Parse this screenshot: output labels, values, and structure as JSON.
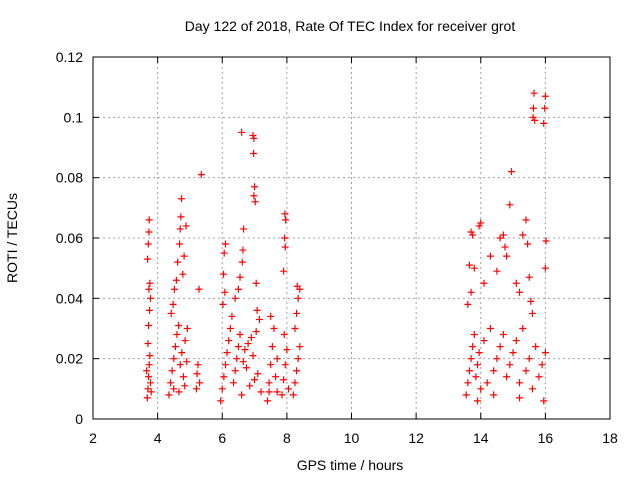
{
  "chart_data": {
    "type": "scatter",
    "title": "Day 122 of 2018, Rate Of TEC Index for receiver grot",
    "xlabel": "GPS time / hours",
    "ylabel": "ROTI / TECUs",
    "xlim": [
      2,
      18
    ],
    "ylim": [
      0,
      0.12
    ],
    "x_ticks": [
      2,
      4,
      6,
      8,
      10,
      12,
      14,
      16,
      18
    ],
    "x_tick_labels": [
      "2",
      "4",
      "6",
      "8",
      "10",
      "12",
      "14",
      "16",
      "18"
    ],
    "y_ticks": [
      0,
      0.02,
      0.04,
      0.06,
      0.08,
      0.1,
      0.12
    ],
    "y_tick_labels": [
      "0",
      "0.02",
      "0.04",
      "0.06",
      "0.08",
      "0.1",
      "0.12"
    ],
    "grid": true,
    "marker": "+",
    "marker_color": "#ff0000",
    "series": [
      {
        "name": "ROTI",
        "points": [
          [
            3.68,
            0.007
          ],
          [
            3.7,
            0.01
          ],
          [
            3.72,
            0.014
          ],
          [
            3.74,
            0.018
          ],
          [
            3.76,
            0.021
          ],
          [
            3.78,
            0.012
          ],
          [
            3.7,
            0.025
          ],
          [
            3.72,
            0.031
          ],
          [
            3.75,
            0.036
          ],
          [
            3.73,
            0.043
          ],
          [
            3.76,
            0.045
          ],
          [
            3.69,
            0.053
          ],
          [
            3.71,
            0.058
          ],
          [
            3.73,
            0.062
          ],
          [
            3.74,
            0.066
          ],
          [
            3.78,
            0.04
          ],
          [
            3.66,
            0.016
          ],
          [
            3.8,
            0.009
          ],
          [
            4.35,
            0.008
          ],
          [
            4.4,
            0.012
          ],
          [
            4.45,
            0.016
          ],
          [
            4.5,
            0.02
          ],
          [
            4.55,
            0.024
          ],
          [
            4.6,
            0.028
          ],
          [
            4.65,
            0.031
          ],
          [
            4.7,
            0.018
          ],
          [
            4.75,
            0.022
          ],
          [
            4.8,
            0.014
          ],
          [
            4.85,
            0.026
          ],
          [
            4.9,
            0.019
          ],
          [
            4.42,
            0.035
          ],
          [
            4.48,
            0.038
          ],
          [
            4.52,
            0.043
          ],
          [
            4.58,
            0.046
          ],
          [
            4.62,
            0.052
          ],
          [
            4.68,
            0.058
          ],
          [
            4.7,
            0.063
          ],
          [
            4.72,
            0.067
          ],
          [
            4.74,
            0.073
          ],
          [
            4.78,
            0.048
          ],
          [
            4.82,
            0.054
          ],
          [
            4.88,
            0.064
          ],
          [
            4.5,
            0.01
          ],
          [
            4.66,
            0.009
          ],
          [
            4.84,
            0.011
          ],
          [
            4.92,
            0.03
          ],
          [
            5.2,
            0.01
          ],
          [
            5.22,
            0.015
          ],
          [
            5.25,
            0.018
          ],
          [
            5.3,
            0.012
          ],
          [
            5.28,
            0.043
          ],
          [
            5.35,
            0.081
          ],
          [
            5.95,
            0.006
          ],
          [
            6.0,
            0.01
          ],
          [
            6.05,
            0.014
          ],
          [
            6.1,
            0.018
          ],
          [
            6.15,
            0.022
          ],
          [
            6.2,
            0.026
          ],
          [
            6.25,
            0.03
          ],
          [
            6.3,
            0.034
          ],
          [
            6.35,
            0.012
          ],
          [
            6.4,
            0.016
          ],
          [
            6.45,
            0.02
          ],
          [
            6.5,
            0.024
          ],
          [
            6.55,
            0.028
          ],
          [
            6.6,
            0.008
          ],
          [
            6.65,
            0.019
          ],
          [
            6.7,
            0.023
          ],
          [
            6.75,
            0.017
          ],
          [
            6.8,
            0.025
          ],
          [
            6.85,
            0.011
          ],
          [
            6.9,
            0.027
          ],
          [
            6.95,
            0.021
          ],
          [
            7.0,
            0.013
          ],
          [
            7.05,
            0.029
          ],
          [
            7.1,
            0.015
          ],
          [
            7.15,
            0.033
          ],
          [
            7.2,
            0.009
          ],
          [
            6.02,
            0.038
          ],
          [
            6.08,
            0.042
          ],
          [
            6.04,
            0.048
          ],
          [
            6.06,
            0.055
          ],
          [
            6.1,
            0.058
          ],
          [
            6.4,
            0.04
          ],
          [
            6.5,
            0.043
          ],
          [
            6.55,
            0.047
          ],
          [
            6.62,
            0.052
          ],
          [
            6.64,
            0.056
          ],
          [
            6.66,
            0.063
          ],
          [
            6.6,
            0.095
          ],
          [
            6.95,
            0.094
          ],
          [
            6.98,
            0.093
          ],
          [
            6.97,
            0.088
          ],
          [
            7.0,
            0.077
          ],
          [
            6.98,
            0.074
          ],
          [
            7.02,
            0.072
          ],
          [
            7.05,
            0.045
          ],
          [
            7.08,
            0.036
          ],
          [
            7.4,
            0.006
          ],
          [
            7.45,
            0.012
          ],
          [
            7.5,
            0.018
          ],
          [
            7.55,
            0.024
          ],
          [
            7.6,
            0.03
          ],
          [
            7.65,
            0.014
          ],
          [
            7.7,
            0.02
          ],
          [
            7.5,
            0.034
          ],
          [
            7.45,
            0.009
          ],
          [
            7.7,
            0.009
          ],
          [
            7.85,
            0.008
          ],
          [
            7.9,
            0.013
          ],
          [
            7.95,
            0.018
          ],
          [
            8.0,
            0.023
          ],
          [
            8.05,
            0.01
          ],
          [
            7.92,
            0.028
          ],
          [
            7.9,
            0.049
          ],
          [
            7.95,
            0.057
          ],
          [
            7.93,
            0.06
          ],
          [
            7.96,
            0.066
          ],
          [
            7.94,
            0.068
          ],
          [
            8.2,
            0.008
          ],
          [
            8.25,
            0.012
          ],
          [
            8.3,
            0.016
          ],
          [
            8.35,
            0.02
          ],
          [
            8.4,
            0.024
          ],
          [
            8.25,
            0.03
          ],
          [
            8.3,
            0.035
          ],
          [
            8.35,
            0.04
          ],
          [
            8.4,
            0.043
          ],
          [
            8.32,
            0.044
          ],
          [
            13.55,
            0.008
          ],
          [
            13.6,
            0.012
          ],
          [
            13.65,
            0.016
          ],
          [
            13.7,
            0.02
          ],
          [
            13.75,
            0.024
          ],
          [
            13.8,
            0.028
          ],
          [
            13.85,
            0.014
          ],
          [
            13.9,
            0.018
          ],
          [
            13.95,
            0.022
          ],
          [
            14.0,
            0.01
          ],
          [
            14.1,
            0.026
          ],
          [
            14.2,
            0.012
          ],
          [
            14.3,
            0.03
          ],
          [
            14.4,
            0.016
          ],
          [
            14.5,
            0.02
          ],
          [
            14.6,
            0.024
          ],
          [
            14.7,
            0.028
          ],
          [
            14.8,
            0.014
          ],
          [
            14.9,
            0.018
          ],
          [
            15.0,
            0.022
          ],
          [
            15.1,
            0.026
          ],
          [
            15.2,
            0.012
          ],
          [
            15.3,
            0.03
          ],
          [
            15.4,
            0.016
          ],
          [
            15.5,
            0.02
          ],
          [
            15.6,
            0.01
          ],
          [
            15.7,
            0.024
          ],
          [
            15.8,
            0.014
          ],
          [
            15.9,
            0.018
          ],
          [
            16.0,
            0.022
          ],
          [
            13.6,
            0.038
          ],
          [
            13.7,
            0.042
          ],
          [
            13.65,
            0.051
          ],
          [
            13.7,
            0.062
          ],
          [
            13.75,
            0.061
          ],
          [
            13.8,
            0.05
          ],
          [
            13.95,
            0.064
          ],
          [
            14.0,
            0.065
          ],
          [
            14.1,
            0.045
          ],
          [
            14.3,
            0.054
          ],
          [
            14.5,
            0.049
          ],
          [
            14.6,
            0.06
          ],
          [
            14.7,
            0.061
          ],
          [
            14.75,
            0.057
          ],
          [
            14.8,
            0.054
          ],
          [
            14.9,
            0.071
          ],
          [
            14.95,
            0.082
          ],
          [
            15.1,
            0.045
          ],
          [
            15.2,
            0.042
          ],
          [
            15.3,
            0.061
          ],
          [
            15.4,
            0.066
          ],
          [
            15.45,
            0.058
          ],
          [
            15.5,
            0.047
          ],
          [
            15.55,
            0.039
          ],
          [
            15.6,
            0.035
          ],
          [
            15.62,
            0.1
          ],
          [
            15.63,
            0.103
          ],
          [
            15.65,
            0.108
          ],
          [
            15.67,
            0.099
          ],
          [
            15.95,
            0.098
          ],
          [
            15.98,
            0.103
          ],
          [
            16.0,
            0.107
          ],
          [
            16.02,
            0.059
          ],
          [
            16.0,
            0.05
          ],
          [
            15.95,
            0.006
          ],
          [
            13.9,
            0.006
          ],
          [
            14.4,
            0.008
          ],
          [
            15.2,
            0.007
          ]
        ]
      }
    ]
  }
}
